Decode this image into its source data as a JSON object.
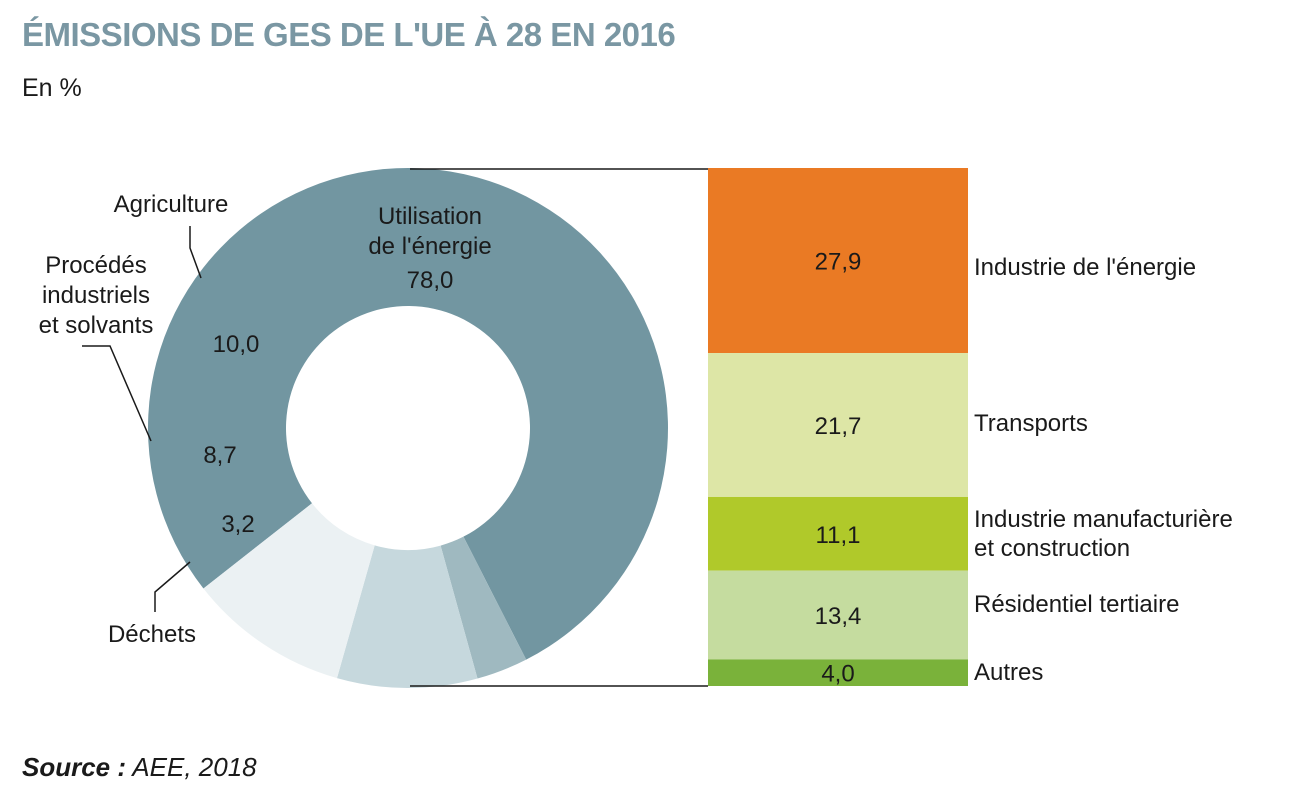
{
  "title": "ÉMISSIONS DE GES DE L'UE À 28 EN 2016",
  "subtitle": "En %",
  "source": {
    "label": "Source :",
    "text": "AEE, 2018"
  },
  "chart_data": [
    {
      "type": "pie",
      "variant": "donut",
      "slices": [
        {
          "label": "Utilisation\nde l'énergie",
          "value": 78.0,
          "display": "78,0",
          "color": "#7296a1"
        },
        {
          "label": "Déchets",
          "value": 3.2,
          "display": "3,2",
          "color": "#9fb9c0"
        },
        {
          "label": "Procédés\nindustriels\net solvants",
          "value": 8.7,
          "display": "8,7",
          "color": "#c6d8dd"
        },
        {
          "label": "Agriculture",
          "value": 10.0,
          "display": "10,0",
          "color": "#ebf1f3"
        }
      ]
    },
    {
      "type": "bar",
      "variant": "stacked-breakdown",
      "parent": "Utilisation de l'énergie",
      "segments": [
        {
          "label": "Industrie de l'énergie",
          "value": 27.9,
          "display": "27,9",
          "color": "#ea7a24"
        },
        {
          "label": "Transports",
          "value": 21.7,
          "display": "21,7",
          "color": "#dde6a6"
        },
        {
          "label": "Industrie manufacturière\net construction",
          "value": 11.1,
          "display": "11,1",
          "color": "#b0c92a"
        },
        {
          "label": "Résidentiel tertiaire",
          "value": 13.4,
          "display": "13,4",
          "color": "#c5dc9f"
        },
        {
          "label": "Autres",
          "value": 4.0,
          "display": "4,0",
          "color": "#7ab23a"
        }
      ]
    }
  ]
}
